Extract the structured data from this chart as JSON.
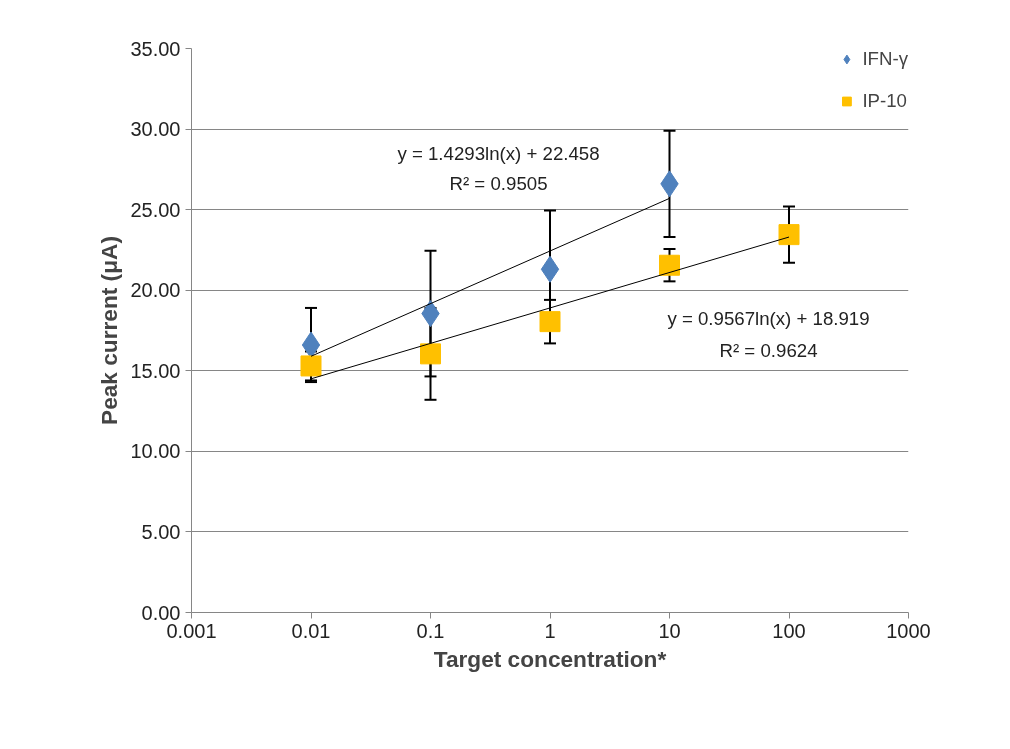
{
  "chart_data": {
    "type": "scatter",
    "xlabel": "Target concentration*",
    "ylabel": "Peak current (μA)",
    "log": "x",
    "grid": "y",
    "legend": "top right",
    "xlim": [
      0.001,
      1000
    ],
    "xticks": [
      0.001,
      0.01,
      0.1,
      1,
      10,
      100,
      1000
    ],
    "ylim": [
      0,
      35
    ],
    "yticks": [
      {
        "value": 0,
        "label": "0.00"
      },
      {
        "value": 5,
        "label": "5.00"
      },
      {
        "value": 10,
        "label": "10.00"
      },
      {
        "value": 15,
        "label": "15.00"
      },
      {
        "value": 20,
        "label": "20.00"
      },
      {
        "value": 25,
        "label": "25.00"
      },
      {
        "value": 30,
        "label": "30.00"
      },
      {
        "value": 35,
        "label": "35.00"
      }
    ],
    "series": [
      {
        "name": "IFN-γ",
        "color": "#4f81bd",
        "marker": "diamond",
        "x": [
          0.01,
          0.1,
          1,
          10
        ],
        "values": [
          16.6,
          18.55,
          21.3,
          26.6
        ],
        "errors": [
          2.3,
          3.9,
          3.65,
          3.3
        ]
      },
      {
        "name": "IP-10",
        "color": "#ffc000",
        "marker": "square",
        "x": [
          0.01,
          0.1,
          1,
          10,
          100
        ],
        "values": [
          15.3,
          16.05,
          18.05,
          21.55,
          23.45
        ],
        "errors": [
          0.9,
          2.85,
          1.35,
          1.0,
          1.75
        ]
      },
      {
        "type": "line",
        "color": "#000000",
        "marker": "none",
        "x": [
          0.01,
          10
        ],
        "values": [
          15.9,
          25.7
        ]
      },
      {
        "type": "line",
        "color": "#000000",
        "marker": "none",
        "x": [
          0.01,
          100
        ],
        "values": [
          14.5,
          23.3
        ]
      }
    ],
    "annotations": [
      "y = 1.4293ln(x) + 22.458",
      "R² = 0.9505",
      "y = 0.9567ln(x) + 18.919",
      "R² = 0.9624"
    ]
  }
}
